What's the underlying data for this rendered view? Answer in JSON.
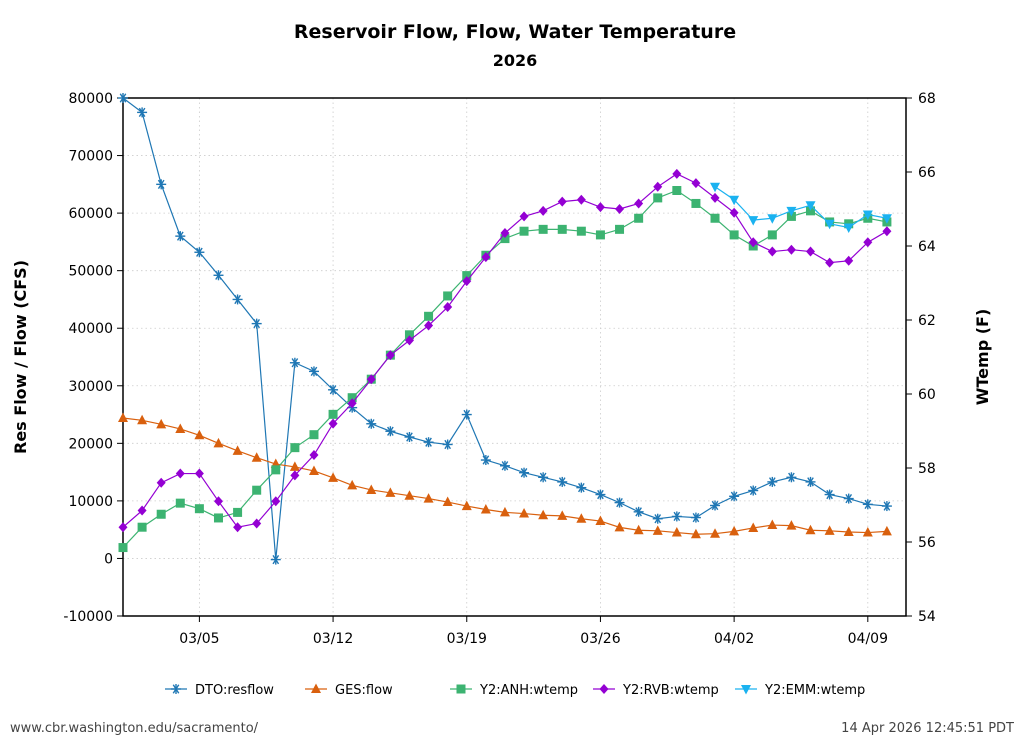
{
  "footer": {
    "url": "www.cbr.washington.edu/sacramento/",
    "timestamp": "14 Apr 2026 12:45:51 PDT"
  },
  "chart_data": {
    "type": "line",
    "title": "Reservoir Flow, Flow, Water Temperature",
    "subtitle": "2026",
    "ylabel": "Res Flow / Flow (CFS)",
    "y2label": "WTemp (F)",
    "ylim": [
      -10000,
      80000
    ],
    "y2lim": [
      54,
      68
    ],
    "yticks": [
      -10000,
      0,
      10000,
      20000,
      30000,
      40000,
      50000,
      60000,
      70000,
      80000
    ],
    "y2ticks": [
      54,
      56,
      58,
      60,
      62,
      64,
      66,
      68
    ],
    "xlim": [
      "2026-03-01",
      "2026-04-11"
    ],
    "xticks": [
      "03/05",
      "03/12",
      "03/19",
      "03/26",
      "04/02",
      "04/09"
    ],
    "grid": true,
    "legend_position": "bottom",
    "x": [
      "2026-03-01",
      "2026-03-02",
      "2026-03-03",
      "2026-03-04",
      "2026-03-05",
      "2026-03-06",
      "2026-03-07",
      "2026-03-08",
      "2026-03-09",
      "2026-03-10",
      "2026-03-11",
      "2026-03-12",
      "2026-03-13",
      "2026-03-14",
      "2026-03-15",
      "2026-03-16",
      "2026-03-17",
      "2026-03-18",
      "2026-03-19",
      "2026-03-20",
      "2026-03-21",
      "2026-03-22",
      "2026-03-23",
      "2026-03-24",
      "2026-03-25",
      "2026-03-26",
      "2026-03-27",
      "2026-03-28",
      "2026-03-29",
      "2026-03-30",
      "2026-03-31",
      "2026-04-01",
      "2026-04-02",
      "2026-04-03",
      "2026-04-04",
      "2026-04-05",
      "2026-04-06",
      "2026-04-07",
      "2026-04-08",
      "2026-04-09",
      "2026-04-10"
    ],
    "series": [
      {
        "name": "DTO:resflow",
        "axis": "left",
        "color": "#1f77b4",
        "marker": "star",
        "values": [
          80000,
          77500,
          65000,
          56000,
          53200,
          49200,
          45000,
          40800,
          -200,
          34000,
          32500,
          29300,
          26200,
          23400,
          22100,
          21100,
          20200,
          19800,
          25000,
          17100,
          16100,
          14900,
          14100,
          13300,
          12300,
          11100,
          9700,
          8100,
          6900,
          7300,
          7100,
          9200,
          10800,
          11800,
          13300,
          14100,
          13300,
          11100,
          10400,
          9400,
          9100
        ]
      },
      {
        "name": "GES:flow",
        "axis": "left",
        "color": "#d9600e",
        "marker": "triangle-up",
        "values": [
          24400,
          24000,
          23300,
          22500,
          21400,
          20000,
          18700,
          17500,
          16400,
          15900,
          15200,
          14000,
          12700,
          11900,
          11400,
          10900,
          10400,
          9800,
          9100,
          8500,
          8000,
          7800,
          7500,
          7400,
          6900,
          6500,
          5400,
          4900,
          4800,
          4500,
          4200,
          4300,
          4700,
          5300,
          5800,
          5700,
          4900,
          4800,
          4600,
          4500,
          4700
        ]
      },
      {
        "name": "Y2:ANH:wtemp",
        "axis": "right",
        "color": "#3cb371",
        "marker": "square",
        "values": [
          55.85,
          56.4,
          56.75,
          57.05,
          56.9,
          56.65,
          56.8,
          57.4,
          57.95,
          58.55,
          58.9,
          59.45,
          59.9,
          60.4,
          61.05,
          61.6,
          62.1,
          62.65,
          63.2,
          63.75,
          64.2,
          64.4,
          64.45,
          64.45,
          64.4,
          64.3,
          64.45,
          64.75,
          65.3,
          65.5,
          65.15,
          64.75,
          64.3,
          64.0,
          64.3,
          64.8,
          64.95,
          64.65,
          64.6,
          64.75,
          64.65
        ]
      },
      {
        "name": "Y2:RVB:wtemp",
        "axis": "right",
        "color": "#9400d3",
        "marker": "diamond",
        "values": [
          56.4,
          56.85,
          57.6,
          57.85,
          57.85,
          57.1,
          56.4,
          56.5,
          57.1,
          57.8,
          58.35,
          59.2,
          59.75,
          60.4,
          61.05,
          61.45,
          61.85,
          62.35,
          63.05,
          63.7,
          64.35,
          64.8,
          64.95,
          65.2,
          65.25,
          65.05,
          65.0,
          65.15,
          65.6,
          65.95,
          65.7,
          65.3,
          64.9,
          64.1,
          63.85,
          63.9,
          63.85,
          63.55,
          63.6,
          64.1,
          64.4
        ]
      },
      {
        "name": "Y2:EMM:wtemp",
        "axis": "right",
        "color": "#1ab2f0",
        "marker": "triangle-down",
        "values": [
          null,
          null,
          null,
          null,
          null,
          null,
          null,
          null,
          null,
          null,
          null,
          null,
          null,
          null,
          null,
          null,
          null,
          null,
          null,
          null,
          null,
          null,
          null,
          null,
          null,
          null,
          null,
          null,
          null,
          null,
          null,
          65.6,
          65.25,
          64.7,
          64.75,
          64.95,
          65.1,
          64.6,
          64.5,
          64.85,
          64.75
        ]
      }
    ]
  }
}
